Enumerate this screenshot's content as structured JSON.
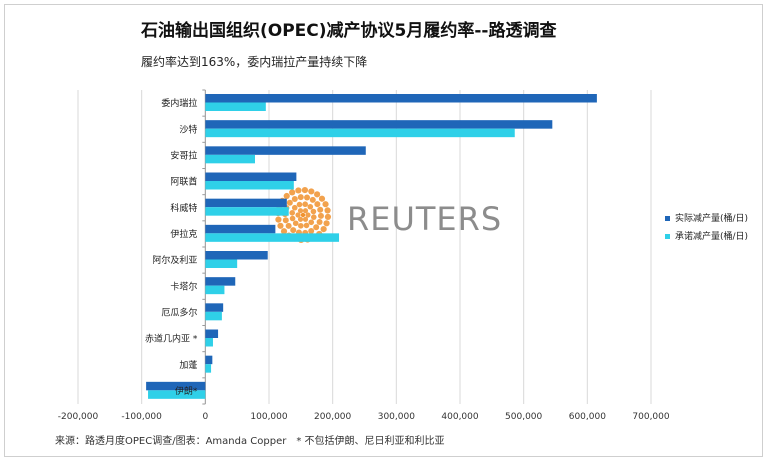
{
  "title": "石油输出国组织(OPEC)减产协议5月履约率--路透调查",
  "subtitle": "履约率达到163%，委内瑞拉产量持续下降",
  "source": "来源：路透月度OPEC调查/图表：Amanda Copper　* 不包括伊朗、尼日利亚和利比亚",
  "watermark": "REUTERS",
  "colors": {
    "actual": "#1f66b8",
    "pledged": "#2fd0e8",
    "grid": "#d9d9d9"
  },
  "chart_data": {
    "type": "bar",
    "orientation": "horizontal",
    "title": "石油输出国组织(OPEC)减产协议5月履约率--路透调查",
    "xlim": [
      -200000,
      700000
    ],
    "xticks": [
      -200000,
      -100000,
      0,
      100000,
      200000,
      300000,
      400000,
      500000,
      600000,
      700000
    ],
    "xtick_labels": [
      "-200,000",
      "-100,000",
      "0",
      "100,000",
      "200,000",
      "300,000",
      "400,000",
      "500,000",
      "600,000",
      "700,000"
    ],
    "categories": [
      "委内瑞拉",
      "沙特",
      "安哥拉",
      "阿联酋",
      "科威特",
      "伊拉克",
      "阿尔及利亚",
      "卡塔尔",
      "厄瓜多尔",
      "赤道几内亚 *",
      "加蓬",
      "伊朗*"
    ],
    "series": [
      {
        "name": "实际减产量(桶/日)",
        "values": [
          615000,
          545000,
          252000,
          143000,
          128000,
          110000,
          98000,
          47000,
          28000,
          20000,
          11000,
          -93000
        ]
      },
      {
        "name": "承诺减产量(桶/日)",
        "values": [
          95000,
          486000,
          78000,
          139000,
          131000,
          210000,
          50000,
          30000,
          26000,
          12000,
          9000,
          -90000
        ]
      }
    ],
    "legend": [
      "实际减产量(桶/日)",
      "承诺减产量(桶/日)"
    ],
    "legend_position": "right",
    "grid": true
  }
}
